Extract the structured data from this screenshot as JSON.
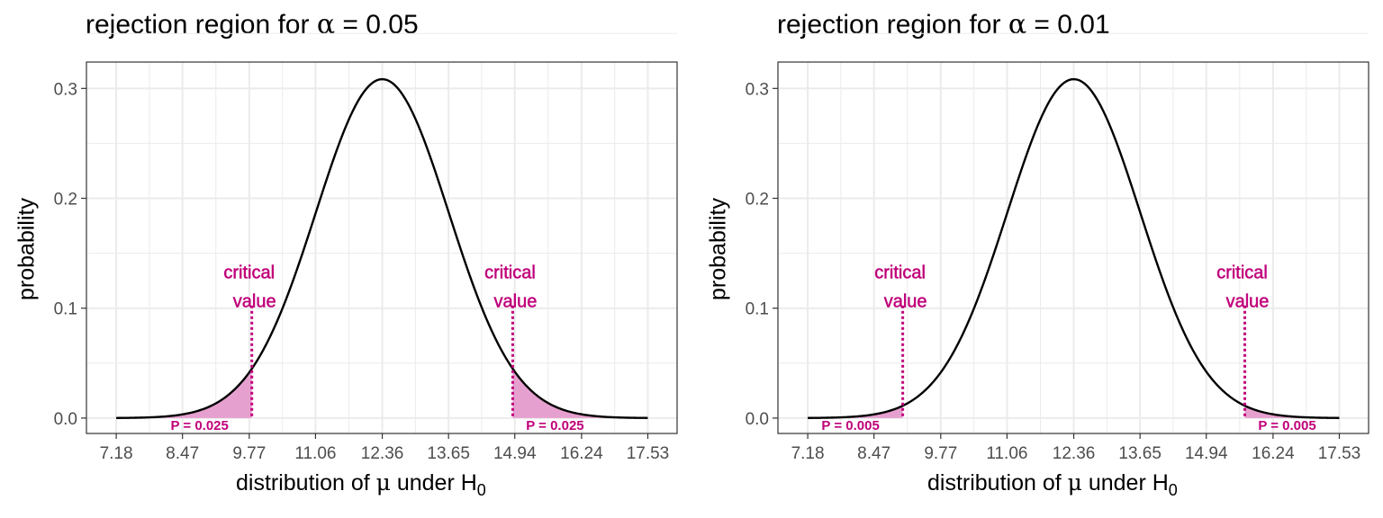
{
  "chart_data": [
    {
      "type": "area",
      "title": "rejection region for α = 0.05",
      "title_parts": {
        "prefix": "rejection region for ",
        "symbol": "α",
        "suffix": " = 0.05"
      },
      "xlabel_parts": {
        "prefix": "distribution of ",
        "symbol": "μ",
        "middle": " under H",
        "subscript": "0"
      },
      "ylabel": "probability",
      "x_ticks": [
        "7.18",
        "8.47",
        "9.77",
        "11.06",
        "12.36",
        "13.65",
        "14.94",
        "16.24",
        "17.53"
      ],
      "y_ticks": [
        "0.0",
        "0.1",
        "0.2",
        "0.3"
      ],
      "xlim": [
        6.6,
        18.1
      ],
      "ylim": [
        -0.014,
        0.324
      ],
      "distribution": {
        "mean": 12.36,
        "sd": 1.2937,
        "x_min": 7.18,
        "x_max": 17.53,
        "peak": 0.3084
      },
      "critical_values": [
        9.82,
        14.9
      ],
      "critical_label_lines": [
        "critical",
        "value"
      ],
      "tail_labels": [
        "P = 0.025",
        "P = 0.025"
      ],
      "grid": true,
      "colors": {
        "curve": "#000000",
        "shade": "#e6a0cf",
        "accent": "#c0007a",
        "grid": "#ebebeb",
        "text": "#4d4d4d"
      }
    },
    {
      "type": "area",
      "title": "rejection region for α = 0.01",
      "title_parts": {
        "prefix": "rejection region for ",
        "symbol": "α",
        "suffix": " = 0.01"
      },
      "xlabel_parts": {
        "prefix": "distribution of ",
        "symbol": "μ",
        "middle": " under H",
        "subscript": "0"
      },
      "ylabel": "probability",
      "x_ticks": [
        "7.18",
        "8.47",
        "9.77",
        "11.06",
        "12.36",
        "13.65",
        "14.94",
        "16.24",
        "17.53"
      ],
      "y_ticks": [
        "0.0",
        "0.1",
        "0.2",
        "0.3"
      ],
      "xlim": [
        6.6,
        18.1
      ],
      "ylim": [
        -0.014,
        0.324
      ],
      "distribution": {
        "mean": 12.36,
        "sd": 1.2937,
        "x_min": 7.18,
        "x_max": 17.53,
        "peak": 0.3084
      },
      "critical_values": [
        9.03,
        15.69
      ],
      "critical_label_lines": [
        "critical",
        "value"
      ],
      "tail_labels": [
        "P = 0.005",
        "P = 0.005"
      ],
      "grid": true,
      "colors": {
        "curve": "#000000",
        "shade": "#e6a0cf",
        "accent": "#c0007a",
        "grid": "#ebebeb",
        "text": "#4d4d4d"
      }
    }
  ]
}
